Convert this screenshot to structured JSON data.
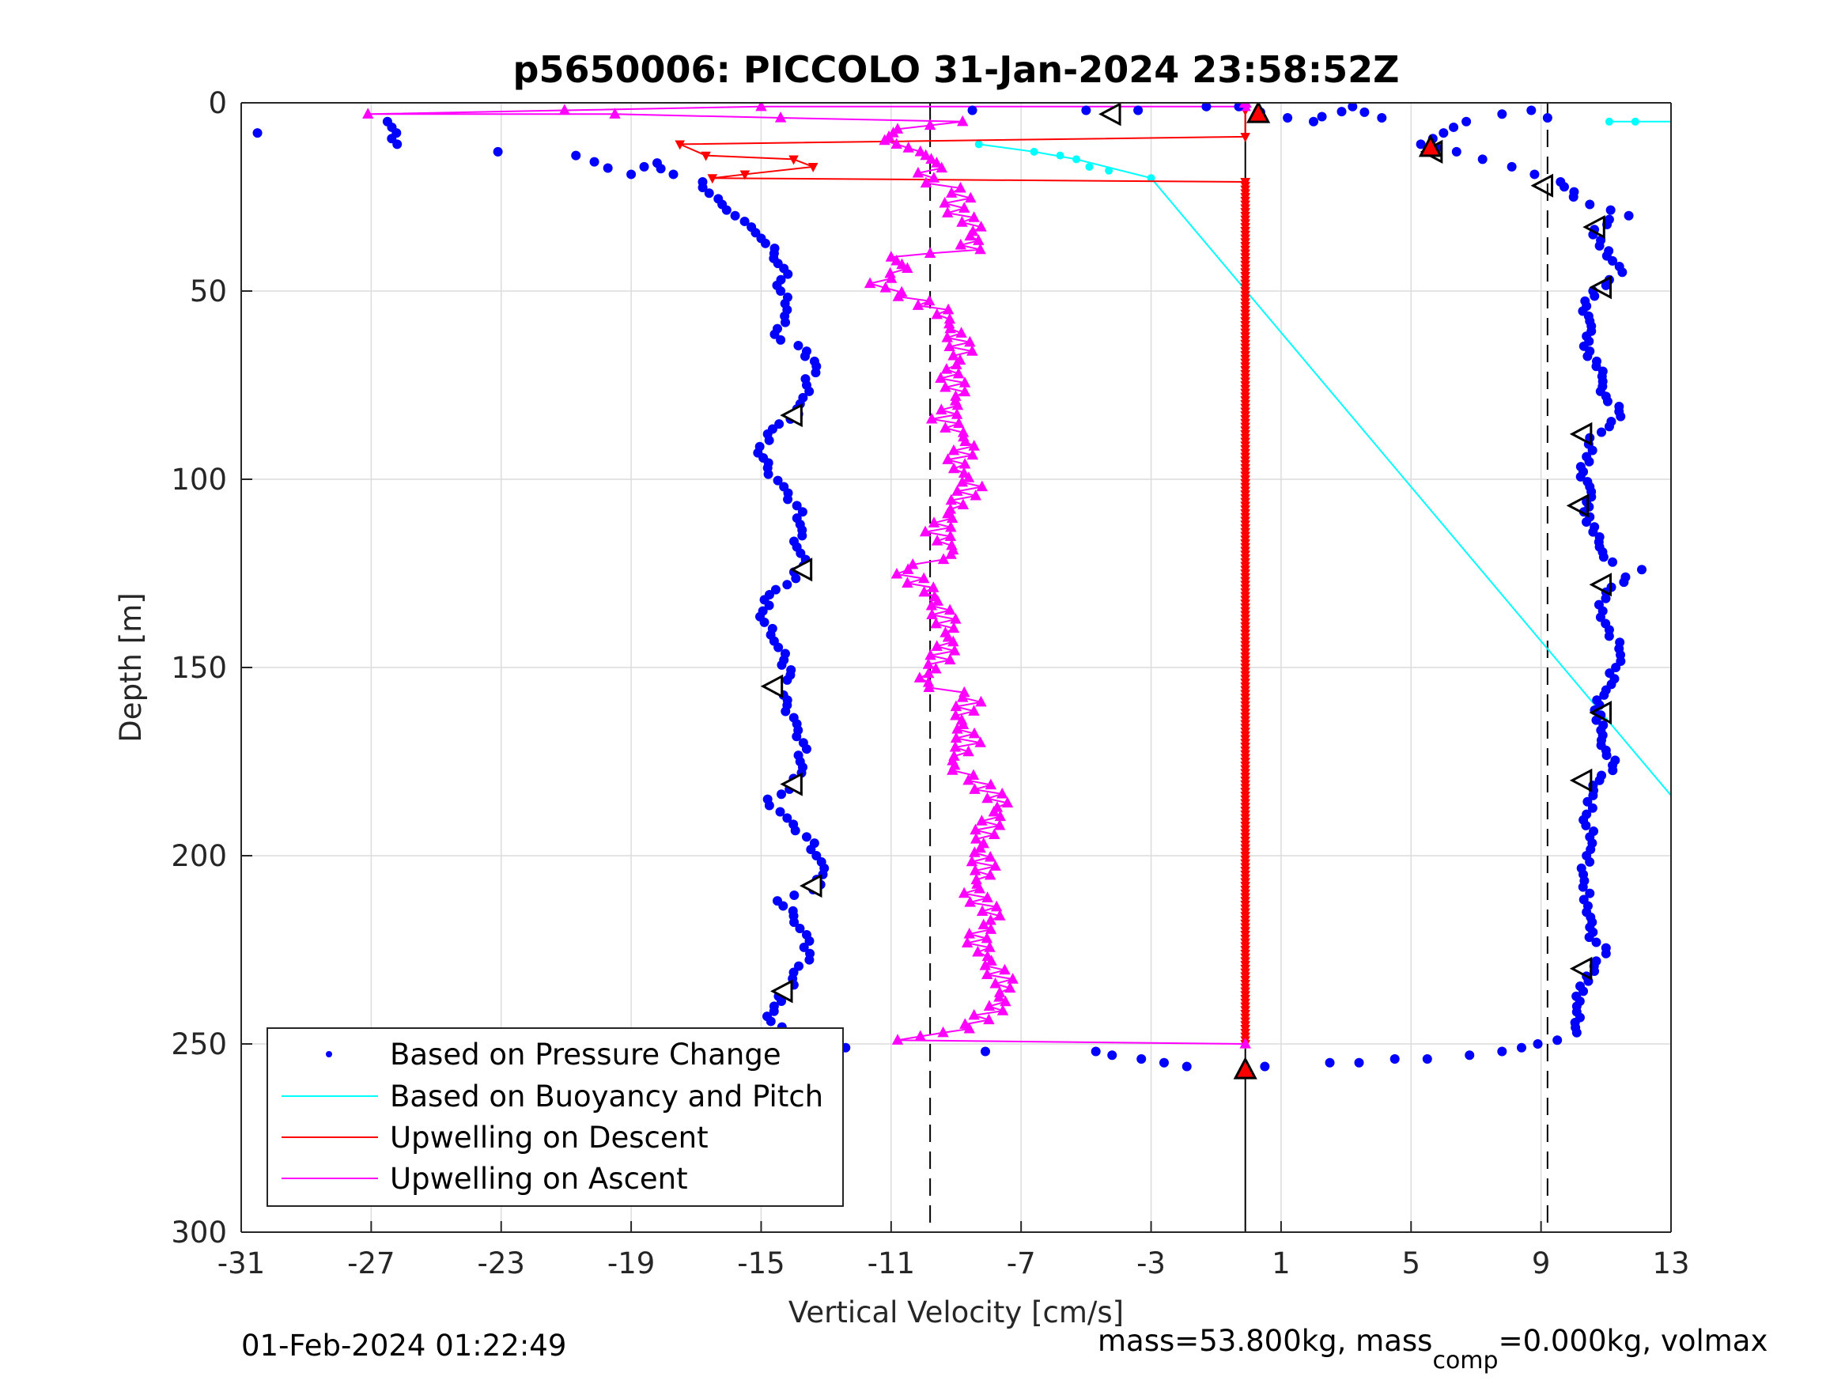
{
  "chart_data": {
    "type": "scatter",
    "title": "p5650006: PICCOLO 31-Jan-2024 23:58:52Z",
    "xlabel": "Vertical Velocity [cm/s]",
    "ylabel": "Depth [m]",
    "xlim": [
      -31,
      13
    ],
    "ylim": [
      0,
      300
    ],
    "y_reversed": true,
    "grid": true,
    "x_ticks": [
      -31,
      -27,
      -23,
      -19,
      -15,
      -11,
      -7,
      -3,
      1,
      5,
      9,
      13
    ],
    "y_ticks": [
      0,
      50,
      100,
      150,
      200,
      250,
      300
    ],
    "legend_placement": "bottom-left",
    "colors": {
      "pressure": "#0000ff",
      "buoyancy": "#00ffff",
      "upwelling_descent": "#ff0000",
      "upwelling_ascent": "#ff00ff",
      "reference_lines": "#000000"
    },
    "series": [
      {
        "name": "Based on Pressure Change",
        "style": "dots",
        "descent": [
          [
            -30.5,
            8
          ],
          [
            -26.5,
            5
          ],
          [
            -26.2,
            11
          ],
          [
            -23.1,
            13
          ],
          [
            -20.7,
            14
          ],
          [
            -19.0,
            19
          ],
          [
            -18.6,
            17
          ],
          [
            -18.2,
            16
          ],
          [
            -17.7,
            19
          ],
          [
            -16.8,
            21
          ],
          [
            -16.6,
            24
          ],
          [
            -16.2,
            27
          ],
          [
            -15.8,
            30
          ],
          [
            -15.3,
            33
          ],
          [
            -15.0,
            36
          ],
          [
            -14.6,
            40
          ],
          [
            -14.3,
            44
          ],
          [
            -14.4,
            50
          ],
          [
            -14.2,
            55
          ],
          [
            -14.5,
            60
          ],
          [
            -14.4,
            63
          ],
          [
            -13.6,
            66
          ],
          [
            -13.3,
            70
          ],
          [
            -13.6,
            75
          ],
          [
            -13.8,
            80
          ],
          [
            -14.1,
            84
          ],
          [
            -14.8,
            88
          ],
          [
            -15.1,
            93
          ],
          [
            -14.8,
            97
          ],
          [
            -14.3,
            102
          ],
          [
            -13.9,
            107
          ],
          [
            -13.8,
            112
          ],
          [
            -13.9,
            118
          ],
          [
            -13.7,
            123
          ],
          [
            -14.2,
            128
          ],
          [
            -14.9,
            132
          ],
          [
            -14.9,
            138
          ],
          [
            -14.6,
            143
          ],
          [
            -14.3,
            148
          ],
          [
            -14.1,
            152
          ],
          [
            -14.5,
            156
          ],
          [
            -14.2,
            160
          ],
          [
            -13.9,
            165
          ],
          [
            -13.7,
            170
          ],
          [
            -13.8,
            175
          ],
          [
            -13.9,
            181
          ],
          [
            -14.8,
            185
          ],
          [
            -14.2,
            190
          ],
          [
            -13.6,
            195
          ],
          [
            -13.3,
            200
          ],
          [
            -13.1,
            205
          ],
          [
            -13.4,
            209
          ],
          [
            -14.5,
            212
          ],
          [
            -14.0,
            216
          ],
          [
            -13.6,
            221
          ],
          [
            -13.5,
            226
          ],
          [
            -14.0,
            231
          ],
          [
            -14.2,
            236
          ],
          [
            -14.6,
            240
          ],
          [
            -14.7,
            244
          ],
          [
            -14.2,
            247
          ],
          [
            -13.5,
            250
          ],
          [
            -12.4,
            251
          ],
          [
            -8.1,
            252
          ],
          [
            -4.7,
            252
          ],
          [
            -4.2,
            253
          ],
          [
            -3.3,
            254
          ],
          [
            -2.6,
            255
          ],
          [
            -1.9,
            256
          ]
        ],
        "ascent": [
          [
            0.5,
            256
          ],
          [
            2.5,
            255
          ],
          [
            3.4,
            255
          ],
          [
            4.5,
            254
          ],
          [
            5.5,
            254
          ],
          [
            6.8,
            253
          ],
          [
            7.8,
            252
          ],
          [
            8.4,
            251
          ],
          [
            8.9,
            250
          ],
          [
            9.5,
            249
          ],
          [
            10.1,
            247
          ],
          [
            10.2,
            243
          ],
          [
            10.1,
            240
          ],
          [
            10.3,
            236
          ],
          [
            10.4,
            232
          ],
          [
            10.7,
            228
          ],
          [
            11.0,
            226
          ],
          [
            10.7,
            223
          ],
          [
            10.5,
            219
          ],
          [
            10.4,
            215
          ],
          [
            10.5,
            210
          ],
          [
            10.3,
            205
          ],
          [
            10.4,
            200
          ],
          [
            10.5,
            195
          ],
          [
            10.4,
            189
          ],
          [
            10.6,
            184
          ],
          [
            10.8,
            180
          ],
          [
            11.2,
            176
          ],
          [
            11.0,
            172
          ],
          [
            10.9,
            168
          ],
          [
            10.7,
            164
          ],
          [
            10.8,
            160
          ],
          [
            11.0,
            156
          ],
          [
            11.3,
            150
          ],
          [
            11.4,
            145
          ],
          [
            11.1,
            140
          ],
          [
            10.9,
            135
          ],
          [
            11.0,
            130
          ],
          [
            11.6,
            126
          ],
          [
            12.1,
            124
          ],
          [
            11.2,
            122
          ],
          [
            10.8,
            118
          ],
          [
            10.6,
            114
          ],
          [
            10.5,
            110
          ],
          [
            10.4,
            106
          ],
          [
            10.5,
            102
          ],
          [
            10.3,
            98
          ],
          [
            10.4,
            94
          ],
          [
            10.5,
            89
          ],
          [
            11.1,
            86
          ],
          [
            11.4,
            82
          ],
          [
            11.0,
            78
          ],
          [
            10.9,
            74
          ],
          [
            10.7,
            70
          ],
          [
            10.5,
            66
          ],
          [
            10.4,
            62
          ],
          [
            10.5,
            58
          ],
          [
            10.4,
            54
          ],
          [
            10.6,
            50
          ],
          [
            11.1,
            47
          ],
          [
            11.5,
            45
          ],
          [
            11.2,
            42
          ],
          [
            10.8,
            38
          ],
          [
            10.6,
            35
          ],
          [
            11.1,
            31
          ],
          [
            11.7,
            30
          ],
          [
            10.5,
            27
          ],
          [
            10.0,
            25
          ],
          [
            9.6,
            21
          ],
          [
            8.8,
            19
          ],
          [
            8.1,
            17
          ],
          [
            7.2,
            15
          ],
          [
            6.4,
            13
          ],
          [
            5.8,
            12
          ],
          [
            5.3,
            11
          ],
          [
            6.0,
            8
          ],
          [
            6.7,
            5
          ],
          [
            7.8,
            3
          ],
          [
            8.7,
            2
          ],
          [
            9.2,
            4
          ],
          [
            4.1,
            4
          ],
          [
            3.2,
            1
          ],
          [
            2.0,
            5
          ],
          [
            1.2,
            4
          ],
          [
            -0.3,
            1
          ],
          [
            -1.3,
            1
          ],
          [
            -3.4,
            2
          ],
          [
            -5.0,
            2
          ],
          [
            -8.5,
            2
          ]
        ]
      },
      {
        "name": "Based on Buoyancy and Pitch",
        "style": "line",
        "dots": [
          [
            -8.3,
            11
          ],
          [
            -6.6,
            13
          ],
          [
            -5.8,
            14
          ],
          [
            -5.3,
            15
          ],
          [
            -4.9,
            17
          ],
          [
            -4.3,
            18
          ],
          [
            -3.0,
            20
          ],
          [
            11.1,
            5
          ],
          [
            11.9,
            5
          ]
        ],
        "line": [
          [
            -8.3,
            11
          ],
          [
            -6.6,
            13
          ],
          [
            -5.3,
            15
          ],
          [
            -3.0,
            20
          ],
          [
            13.0,
            184
          ]
        ],
        "top_segment": [
          [
            11.1,
            5
          ],
          [
            13.0,
            5
          ]
        ]
      },
      {
        "name": "Upwelling on Descent",
        "style": "line+down-triangles",
        "profile_top": [
          [
            -0.1,
            2
          ],
          [
            -0.1,
            9
          ],
          [
            -17.5,
            11
          ],
          [
            -16.7,
            14
          ],
          [
            -14.0,
            15
          ],
          [
            -13.4,
            17
          ],
          [
            -15.5,
            19
          ],
          [
            -16.5,
            20
          ],
          [
            -0.1,
            21
          ]
        ],
        "constant_x": -0.1,
        "constant_depth_range": [
          21,
          250
        ]
      },
      {
        "name": "Upwelling on Ascent",
        "style": "line+up-triangles",
        "profile": [
          [
            -0.1,
            250
          ],
          [
            -10.8,
            249
          ],
          [
            -8.7,
            246
          ],
          [
            -7.7,
            240
          ],
          [
            -7.5,
            234
          ],
          [
            -8.0,
            228
          ],
          [
            -8.4,
            222
          ],
          [
            -7.8,
            216
          ],
          [
            -8.5,
            210
          ],
          [
            -8.1,
            204
          ],
          [
            -8.3,
            198
          ],
          [
            -8.0,
            192
          ],
          [
            -7.6,
            186
          ],
          [
            -8.4,
            180
          ],
          [
            -9.2,
            176
          ],
          [
            -8.6,
            170
          ],
          [
            -8.9,
            164
          ],
          [
            -8.5,
            158
          ],
          [
            -10.1,
            154
          ],
          [
            -9.5,
            148
          ],
          [
            -9.2,
            142
          ],
          [
            -9.4,
            136
          ],
          [
            -9.8,
            130
          ],
          [
            -10.7,
            124
          ],
          [
            -9.0,
            120
          ],
          [
            -9.6,
            114
          ],
          [
            -9.1,
            108
          ],
          [
            -8.5,
            102
          ],
          [
            -9.0,
            96
          ],
          [
            -8.6,
            90
          ],
          [
            -9.4,
            84
          ],
          [
            -8.9,
            78
          ],
          [
            -9.2,
            72
          ],
          [
            -8.8,
            66
          ],
          [
            -9.1,
            60
          ],
          [
            -9.5,
            55
          ],
          [
            -11.5,
            48
          ],
          [
            -10.5,
            44
          ],
          [
            -11.0,
            41
          ],
          [
            -8.6,
            39
          ],
          [
            -8.4,
            33
          ],
          [
            -9.1,
            28
          ],
          [
            -8.8,
            24
          ],
          [
            -10.0,
            20
          ],
          [
            -9.6,
            16
          ],
          [
            -10.1,
            13
          ],
          [
            -11.2,
            10
          ],
          [
            -10.8,
            7
          ],
          [
            -8.8,
            5
          ],
          [
            -14.4,
            4
          ],
          [
            -19.5,
            3
          ],
          [
            -27.1,
            3
          ],
          [
            -15.0,
            1
          ],
          [
            -0.1,
            1
          ]
        ]
      }
    ],
    "markers": {
      "open_triangles_descent": [
        [
          -4.2,
          3
        ],
        [
          -14.0,
          83
        ],
        [
          -13.7,
          124
        ],
        [
          -14.6,
          155
        ],
        [
          -14.0,
          181
        ],
        [
          -13.4,
          208
        ],
        [
          -14.3,
          236
        ]
      ],
      "open_triangles_ascent": [
        [
          5.7,
          13
        ],
        [
          9.1,
          22
        ],
        [
          10.7,
          33
        ],
        [
          10.9,
          49
        ],
        [
          10.3,
          88
        ],
        [
          10.2,
          107
        ],
        [
          10.9,
          128
        ],
        [
          10.9,
          162
        ],
        [
          10.3,
          180
        ],
        [
          10.3,
          230
        ]
      ],
      "red_triangles": [
        [
          0.3,
          3
        ],
        [
          5.6,
          12
        ],
        [
          -14.2,
          250
        ],
        [
          -0.1,
          257
        ]
      ],
      "magenta_marker": [
        [
          -0.1,
          0
        ]
      ]
    },
    "reference_lines": {
      "solid_vertical_x": -0.1,
      "dashed_vertical_x": [
        -9.8,
        9.2
      ]
    },
    "footer_left": "01-Feb-2024 01:22:49",
    "footer_right_pre": "mass=53.800kg, mass",
    "footer_right_sub": "comp",
    "footer_right_post": "=0.000kg, volmax"
  }
}
